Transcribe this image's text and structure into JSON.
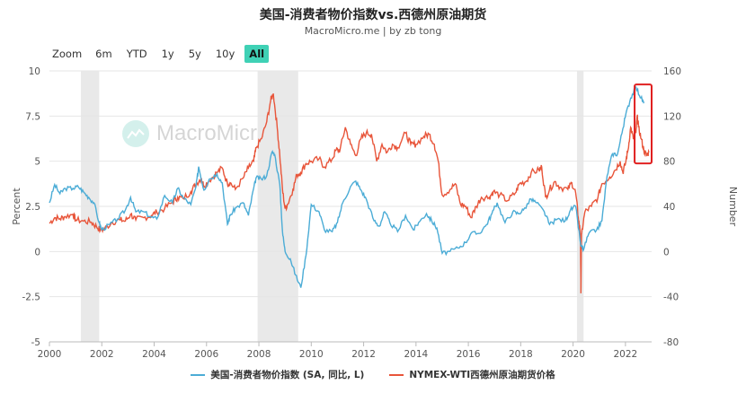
{
  "header": {
    "title": "美国-消费者物价指数vs.西德州原油期货",
    "subtitle": "MacroMicro.me | by zb tong"
  },
  "zoom": {
    "label": "Zoom",
    "buttons": [
      "6m",
      "YTD",
      "1y",
      "5y",
      "10y",
      "All"
    ],
    "active": "All"
  },
  "watermark": {
    "text": "MacroMicro"
  },
  "colors": {
    "cpi": "#4bacd6",
    "wti": "#e8553a",
    "recession": "#e9e9e9",
    "highlight": "#e02020"
  },
  "chart_data": {
    "type": "line",
    "x_ticks": [
      "2000",
      "2002",
      "2004",
      "2006",
      "2008",
      "2010",
      "2012",
      "2014",
      "2016",
      "2018",
      "2020",
      "2022"
    ],
    "y_left": {
      "label": "Percent",
      "min": -5,
      "max": 10,
      "ticks": [
        "10",
        "7.5",
        "5",
        "2.5",
        "0",
        "-2.5",
        "-5"
      ]
    },
    "y_right": {
      "label": "Number",
      "min": -80,
      "max": 160,
      "ticks": [
        "160",
        "120",
        "80",
        "40",
        "0",
        "-40",
        "-80"
      ]
    },
    "recessions": [
      [
        2001.2,
        2001.9
      ],
      [
        2007.95,
        2009.5
      ],
      [
        2020.15,
        2020.4
      ]
    ],
    "highlight_box": {
      "x": [
        2022.35,
        2023.0
      ],
      "y_right": [
        78,
        148
      ]
    },
    "series": [
      {
        "name": "美国-消费者物价指数 (SA, 同比, L)",
        "axis": "left",
        "points": [
          [
            2000.0,
            2.7
          ],
          [
            2000.2,
            3.7
          ],
          [
            2000.4,
            3.2
          ],
          [
            2000.6,
            3.5
          ],
          [
            2000.9,
            3.5
          ],
          [
            2001.1,
            3.6
          ],
          [
            2001.3,
            3.3
          ],
          [
            2001.5,
            3.0
          ],
          [
            2001.7,
            2.7
          ],
          [
            2001.9,
            1.6
          ],
          [
            2002.0,
            1.2
          ],
          [
            2002.3,
            1.5
          ],
          [
            2002.6,
            1.8
          ],
          [
            2002.9,
            2.3
          ],
          [
            2003.1,
            3.0
          ],
          [
            2003.3,
            2.2
          ],
          [
            2003.6,
            2.2
          ],
          [
            2003.9,
            1.9
          ],
          [
            2004.1,
            1.8
          ],
          [
            2004.4,
            3.1
          ],
          [
            2004.7,
            2.7
          ],
          [
            2004.9,
            3.5
          ],
          [
            2005.1,
            3.0
          ],
          [
            2005.4,
            2.6
          ],
          [
            2005.6,
            3.6
          ],
          [
            2005.7,
            4.7
          ],
          [
            2005.9,
            3.4
          ],
          [
            2006.1,
            4.0
          ],
          [
            2006.4,
            4.3
          ],
          [
            2006.6,
            3.8
          ],
          [
            2006.8,
            1.5
          ],
          [
            2006.9,
            2.0
          ],
          [
            2007.1,
            2.4
          ],
          [
            2007.4,
            2.7
          ],
          [
            2007.6,
            2.0
          ],
          [
            2007.8,
            3.5
          ],
          [
            2007.9,
            4.1
          ],
          [
            2008.1,
            4.0
          ],
          [
            2008.3,
            4.2
          ],
          [
            2008.5,
            5.5
          ],
          [
            2008.6,
            5.4
          ],
          [
            2008.8,
            3.7
          ],
          [
            2008.9,
            1.1
          ],
          [
            2009.0,
            0.0
          ],
          [
            2009.2,
            -0.4
          ],
          [
            2009.4,
            -1.3
          ],
          [
            2009.6,
            -2.0
          ],
          [
            2009.8,
            -0.2
          ],
          [
            2010.0,
            2.6
          ],
          [
            2010.3,
            2.2
          ],
          [
            2010.5,
            1.2
          ],
          [
            2010.8,
            1.1
          ],
          [
            2011.0,
            1.6
          ],
          [
            2011.2,
            2.7
          ],
          [
            2011.5,
            3.6
          ],
          [
            2011.7,
            3.9
          ],
          [
            2011.9,
            3.4
          ],
          [
            2012.1,
            2.9
          ],
          [
            2012.4,
            1.7
          ],
          [
            2012.6,
            1.4
          ],
          [
            2012.8,
            2.2
          ],
          [
            2013.0,
            1.6
          ],
          [
            2013.3,
            1.1
          ],
          [
            2013.6,
            2.0
          ],
          [
            2013.9,
            1.2
          ],
          [
            2014.1,
            1.6
          ],
          [
            2014.4,
            2.1
          ],
          [
            2014.6,
            1.7
          ],
          [
            2014.8,
            1.3
          ],
          [
            2015.0,
            -0.1
          ],
          [
            2015.3,
            0.0
          ],
          [
            2015.6,
            0.2
          ],
          [
            2015.9,
            0.5
          ],
          [
            2016.1,
            1.0
          ],
          [
            2016.4,
            1.0
          ],
          [
            2016.7,
            1.5
          ],
          [
            2016.9,
            2.1
          ],
          [
            2017.1,
            2.7
          ],
          [
            2017.4,
            1.6
          ],
          [
            2017.7,
            2.2
          ],
          [
            2017.9,
            2.1
          ],
          [
            2018.1,
            2.3
          ],
          [
            2018.4,
            2.9
          ],
          [
            2018.6,
            2.7
          ],
          [
            2018.9,
            2.2
          ],
          [
            2019.1,
            1.5
          ],
          [
            2019.4,
            1.8
          ],
          [
            2019.7,
            1.7
          ],
          [
            2019.9,
            2.3
          ],
          [
            2020.1,
            2.5
          ],
          [
            2020.3,
            0.3
          ],
          [
            2020.4,
            0.1
          ],
          [
            2020.6,
            1.0
          ],
          [
            2020.9,
            1.2
          ],
          [
            2021.1,
            1.7
          ],
          [
            2021.3,
            4.2
          ],
          [
            2021.5,
            5.4
          ],
          [
            2021.7,
            5.4
          ],
          [
            2021.9,
            6.8
          ],
          [
            2022.0,
            7.5
          ],
          [
            2022.2,
            8.5
          ],
          [
            2022.4,
            9.1
          ],
          [
            2022.6,
            8.5
          ],
          [
            2022.7,
            8.2
          ]
        ]
      },
      {
        "name": "NYMEX-WTI西德州原油期货价格",
        "axis": "right",
        "points": [
          [
            2000.0,
            25
          ],
          [
            2000.2,
            30
          ],
          [
            2000.4,
            29
          ],
          [
            2000.6,
            31
          ],
          [
            2000.9,
            33
          ],
          [
            2001.0,
            28
          ],
          [
            2001.3,
            27
          ],
          [
            2001.6,
            26
          ],
          [
            2001.8,
            22
          ],
          [
            2001.95,
            19
          ],
          [
            2002.1,
            20
          ],
          [
            2002.4,
            26
          ],
          [
            2002.7,
            28
          ],
          [
            2002.9,
            27
          ],
          [
            2003.1,
            33
          ],
          [
            2003.3,
            28
          ],
          [
            2003.6,
            30
          ],
          [
            2003.9,
            32
          ],
          [
            2004.1,
            35
          ],
          [
            2004.4,
            38
          ],
          [
            2004.7,
            44
          ],
          [
            2004.9,
            48
          ],
          [
            2005.1,
            47
          ],
          [
            2005.4,
            53
          ],
          [
            2005.6,
            60
          ],
          [
            2005.8,
            65
          ],
          [
            2005.9,
            58
          ],
          [
            2006.1,
            63
          ],
          [
            2006.4,
            70
          ],
          [
            2006.6,
            74
          ],
          [
            2006.8,
            60
          ],
          [
            2006.9,
            61
          ],
          [
            2007.1,
            55
          ],
          [
            2007.4,
            65
          ],
          [
            2007.6,
            74
          ],
          [
            2007.8,
            80
          ],
          [
            2007.9,
            92
          ],
          [
            2008.1,
            100
          ],
          [
            2008.3,
            115
          ],
          [
            2008.45,
            134
          ],
          [
            2008.55,
            140
          ],
          [
            2008.7,
            110
          ],
          [
            2008.8,
            85
          ],
          [
            2008.9,
            55
          ],
          [
            2009.0,
            38
          ],
          [
            2009.1,
            42
          ],
          [
            2009.3,
            55
          ],
          [
            2009.45,
            68
          ],
          [
            2009.6,
            70
          ],
          [
            2009.8,
            78
          ],
          [
            2010.0,
            80
          ],
          [
            2010.3,
            82
          ],
          [
            2010.5,
            75
          ],
          [
            2010.8,
            82
          ],
          [
            2010.95,
            90
          ],
          [
            2011.1,
            90
          ],
          [
            2011.3,
            110
          ],
          [
            2011.5,
            95
          ],
          [
            2011.7,
            85
          ],
          [
            2011.9,
            100
          ],
          [
            2012.1,
            105
          ],
          [
            2012.3,
            104
          ],
          [
            2012.5,
            80
          ],
          [
            2012.7,
            95
          ],
          [
            2012.9,
            88
          ],
          [
            2013.1,
            95
          ],
          [
            2013.3,
            92
          ],
          [
            2013.6,
            105
          ],
          [
            2013.8,
            95
          ],
          [
            2014.0,
            95
          ],
          [
            2014.3,
            102
          ],
          [
            2014.5,
            104
          ],
          [
            2014.7,
            95
          ],
          [
            2014.85,
            80
          ],
          [
            2015.0,
            50
          ],
          [
            2015.3,
            55
          ],
          [
            2015.5,
            60
          ],
          [
            2015.7,
            42
          ],
          [
            2015.9,
            40
          ],
          [
            2016.1,
            30
          ],
          [
            2016.3,
            40
          ],
          [
            2016.5,
            48
          ],
          [
            2016.8,
            48
          ],
          [
            2016.95,
            53
          ],
          [
            2017.2,
            50
          ],
          [
            2017.5,
            45
          ],
          [
            2017.8,
            52
          ],
          [
            2017.95,
            60
          ],
          [
            2018.2,
            62
          ],
          [
            2018.4,
            70
          ],
          [
            2018.7,
            72
          ],
          [
            2018.8,
            75
          ],
          [
            2018.95,
            48
          ],
          [
            2019.1,
            55
          ],
          [
            2019.3,
            62
          ],
          [
            2019.5,
            57
          ],
          [
            2019.8,
            55
          ],
          [
            2019.95,
            61
          ],
          [
            2020.1,
            52
          ],
          [
            2020.2,
            30
          ],
          [
            2020.28,
            15
          ],
          [
            2020.3,
            -37
          ],
          [
            2020.32,
            15
          ],
          [
            2020.45,
            35
          ],
          [
            2020.7,
            40
          ],
          [
            2020.95,
            48
          ],
          [
            2021.1,
            60
          ],
          [
            2021.4,
            66
          ],
          [
            2021.6,
            72
          ],
          [
            2021.8,
            80
          ],
          [
            2021.9,
            70
          ],
          [
            2022.0,
            78
          ],
          [
            2022.1,
            90
          ],
          [
            2022.2,
            110
          ],
          [
            2022.3,
            100
          ],
          [
            2022.4,
            105
          ],
          [
            2022.45,
            120
          ],
          [
            2022.5,
            110
          ],
          [
            2022.6,
            100
          ],
          [
            2022.7,
            90
          ],
          [
            2022.8,
            85
          ],
          [
            2022.9,
            88
          ]
        ]
      }
    ],
    "legend_position": "bottom"
  }
}
